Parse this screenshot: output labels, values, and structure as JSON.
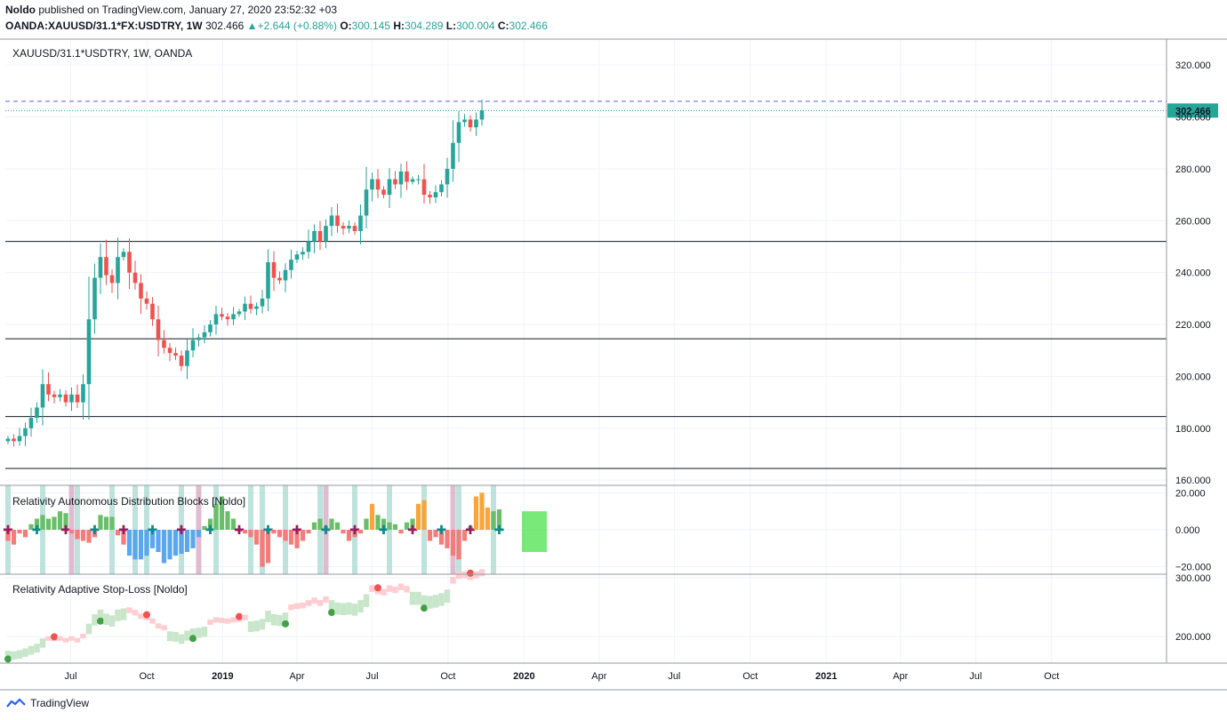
{
  "header": {
    "publisher": "Noldo",
    "published_text": "published on TradingView.com, January 27, 2020 23:52:32 +03",
    "symbol_line": "OANDA:XAUUSD/31.1*FX:USDTRY, 1W",
    "last": "302.466",
    "change": "+2.644 (+0.88%)",
    "o_label": "O:",
    "o": "300.145",
    "h_label": "H:",
    "h": "304.289",
    "l_label": "L:",
    "l": "300.004",
    "c_label": "C:",
    "c": "302.466"
  },
  "brand": {
    "name": "TradingView",
    "icon": "tradingview-logo-icon"
  },
  "colors": {
    "up": "#26a69a",
    "down": "#ef5350",
    "grid": "#f0f3fa",
    "pane_border": "#9598a1",
    "dashed_line": "#5b5bf0",
    "price_tag": "#26a69a"
  },
  "chart_data": [
    {
      "type": "candlestick",
      "title": "XAUUSD/31.1*USDTRY, 1W, OANDA",
      "interval": "1W",
      "x_start": "2018-04-16",
      "x_end": "2020-01-27",
      "ylim": [
        158,
        330
      ],
      "y_ticks": [
        "320.000",
        "300.000",
        "280.000",
        "260.000",
        "240.000",
        "220.000",
        "200.000",
        "180.000",
        "160.000"
      ],
      "x_ticks": [
        "Jul",
        "Oct",
        "2019",
        "Apr",
        "Jul",
        "Oct",
        "2020",
        "Apr",
        "Jul",
        "Oct",
        "2021",
        "Apr",
        "Jul",
        "Oct"
      ],
      "horizontal_lines": [
        252,
        214.5,
        184.5,
        164.5
      ],
      "dashed_line": 306,
      "last_price": 302.466,
      "last_price_label": "302.466",
      "close": [
        176,
        175,
        177,
        180,
        184,
        188,
        197,
        193,
        192,
        193,
        190,
        193,
        190,
        197,
        222,
        238,
        246,
        239,
        236,
        246,
        248,
        240,
        236,
        230,
        228,
        222,
        214,
        211,
        209,
        208,
        204,
        210,
        214,
        215,
        217,
        220,
        224,
        223,
        222,
        224,
        225,
        228,
        226,
        227,
        230,
        244,
        238,
        237,
        241,
        245,
        247,
        248,
        252,
        256,
        252,
        258,
        262,
        258,
        257,
        258,
        256,
        262,
        272,
        276,
        272,
        270,
        276,
        274,
        279,
        275,
        276,
        276,
        270,
        269,
        271,
        274,
        280,
        290,
        298,
        299,
        296,
        299,
        302.5
      ],
      "candle_count_note": "weekly candles",
      "series_type": "ohlc-weekly"
    },
    {
      "type": "bar",
      "title": "Relativity Autonomous Distribution Blocks [Noldo]",
      "ylim": [
        -24,
        24
      ],
      "y_ticks": [
        "20.000",
        "0.000",
        "−20.000"
      ],
      "values": [
        -6,
        -8,
        -2,
        -4,
        3,
        6,
        8,
        6,
        7,
        10,
        9,
        -2,
        -5,
        -6,
        -7,
        -4,
        8,
        7,
        7,
        -3,
        -8,
        -14,
        -16,
        -16,
        -14,
        -10,
        -12,
        -18,
        -16,
        -14,
        -13,
        -12,
        -10,
        -4,
        2,
        6,
        14,
        18,
        10,
        6,
        -1,
        -2,
        -4,
        -8,
        -20,
        -18,
        -2,
        -4,
        -6,
        -8,
        -10,
        -6,
        -2,
        4,
        6,
        2,
        6,
        4,
        -2,
        -6,
        -4,
        -2,
        6,
        14,
        8,
        6,
        4,
        3,
        -2,
        4,
        6,
        14,
        16,
        -6,
        -4,
        -8,
        -10,
        -14,
        -16,
        -6,
        2,
        18,
        20,
        12,
        10,
        11
      ],
      "markers_note": "cross signal markers at zero line"
    },
    {
      "type": "area",
      "title": "Relativity Adaptive Stop-Loss [Noldo]",
      "ylim": [
        155,
        306
      ],
      "y_ticks": [
        "300.000",
        "200.000"
      ]
    }
  ]
}
